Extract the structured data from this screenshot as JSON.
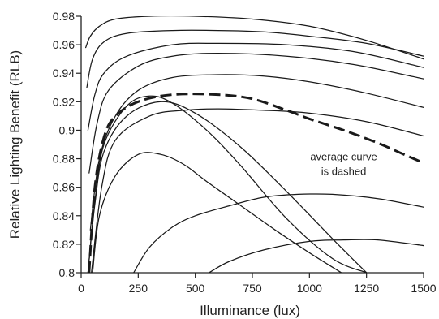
{
  "chart_data": {
    "type": "line",
    "xlabel": "Illuminance (lux)",
    "ylabel": "Relative Lighting Benefit (RLB)",
    "xlim": [
      0,
      1500
    ],
    "ylim": [
      0.8,
      0.98
    ],
    "x_ticks": [
      0,
      250,
      500,
      750,
      1000,
      1250,
      1500
    ],
    "y_ticks": [
      0.8,
      0.82,
      0.84,
      0.86,
      0.88,
      0.9,
      0.92,
      0.94,
      0.96,
      0.98
    ],
    "y_tick_labels": [
      "0.8",
      "0.82",
      "0.84",
      "0.86",
      "0.88",
      "0.9",
      "0.92",
      "0.94",
      "0.96",
      "0.98"
    ],
    "grid": false,
    "legend": "none",
    "annotation": {
      "lines": [
        "average curve",
        "is dashed"
      ],
      "x": 1150,
      "y": 0.879
    },
    "series": [
      {
        "style": "solid",
        "x": [
          20,
          40,
          80,
          150,
          300,
          500,
          750,
          1000,
          1250,
          1500
        ],
        "y": [
          0.958,
          0.966,
          0.973,
          0.978,
          0.98,
          0.98,
          0.978,
          0.973,
          0.963,
          0.95
        ]
      },
      {
        "style": "solid",
        "x": [
          25,
          50,
          100,
          200,
          400,
          600,
          800,
          1000,
          1250,
          1500
        ],
        "y": [
          0.93,
          0.95,
          0.962,
          0.968,
          0.97,
          0.97,
          0.969,
          0.966,
          0.961,
          0.952
        ]
      },
      {
        "style": "solid",
        "x": [
          30,
          60,
          100,
          200,
          400,
          600,
          900,
          1200,
          1500
        ],
        "y": [
          0.9,
          0.925,
          0.94,
          0.952,
          0.96,
          0.961,
          0.96,
          0.955,
          0.944
        ]
      },
      {
        "style": "solid",
        "x": [
          35,
          70,
          120,
          250,
          400,
          600,
          900,
          1200,
          1500
        ],
        "y": [
          0.87,
          0.905,
          0.928,
          0.945,
          0.952,
          0.954,
          0.952,
          0.946,
          0.936
        ]
      },
      {
        "style": "solid",
        "x": [
          40,
          80,
          150,
          250,
          400,
          600,
          800,
          1000,
          1250,
          1500
        ],
        "y": [
          0.83,
          0.88,
          0.91,
          0.928,
          0.937,
          0.939,
          0.938,
          0.934,
          0.926,
          0.916
        ]
      },
      {
        "style": "solid",
        "x": [
          45,
          90,
          150,
          300,
          450,
          600,
          800,
          1000,
          1250,
          1500
        ],
        "y": [
          0.8,
          0.86,
          0.893,
          0.91,
          0.914,
          0.915,
          0.914,
          0.912,
          0.906,
          0.896
        ]
      },
      {
        "style": "dashed",
        "x": [
          35,
          60,
          100,
          150,
          250,
          400,
          600,
          750,
          900,
          1000,
          1150,
          1300,
          1400,
          1500
        ],
        "y": [
          0.8,
          0.86,
          0.895,
          0.91,
          0.92,
          0.925,
          0.925,
          0.922,
          0.914,
          0.908,
          0.9,
          0.891,
          0.884,
          0.877
        ]
      },
      {
        "style": "solid",
        "x": [
          30,
          60,
          100,
          200,
          300,
          400,
          550,
          700,
          900,
          1100,
          1250
        ],
        "y": [
          0.8,
          0.85,
          0.89,
          0.917,
          0.924,
          0.919,
          0.9,
          0.875,
          0.838,
          0.81,
          0.8
        ]
      },
      {
        "style": "solid",
        "x": [
          30,
          60,
          100,
          200,
          350,
          500,
          700,
          900,
          1100,
          1250
        ],
        "y": [
          0.8,
          0.848,
          0.885,
          0.91,
          0.92,
          0.912,
          0.888,
          0.857,
          0.824,
          0.8
        ]
      },
      {
        "style": "solid",
        "x": [
          50,
          80,
          150,
          250,
          350,
          450,
          550,
          700,
          850,
          1000,
          1140
        ],
        "y": [
          0.8,
          0.84,
          0.868,
          0.883,
          0.883,
          0.876,
          0.864,
          0.847,
          0.83,
          0.814,
          0.8
        ]
      },
      {
        "style": "solid",
        "x": [
          230,
          300,
          400,
          500,
          650,
          800,
          950,
          1100,
          1300,
          1500
        ],
        "y": [
          0.8,
          0.818,
          0.832,
          0.84,
          0.847,
          0.853,
          0.855,
          0.855,
          0.852,
          0.846
        ]
      },
      {
        "style": "solid",
        "x": [
          560,
          650,
          800,
          1000,
          1150,
          1300,
          1500
        ],
        "y": [
          0.8,
          0.808,
          0.816,
          0.822,
          0.823,
          0.823,
          0.819
        ]
      }
    ]
  }
}
